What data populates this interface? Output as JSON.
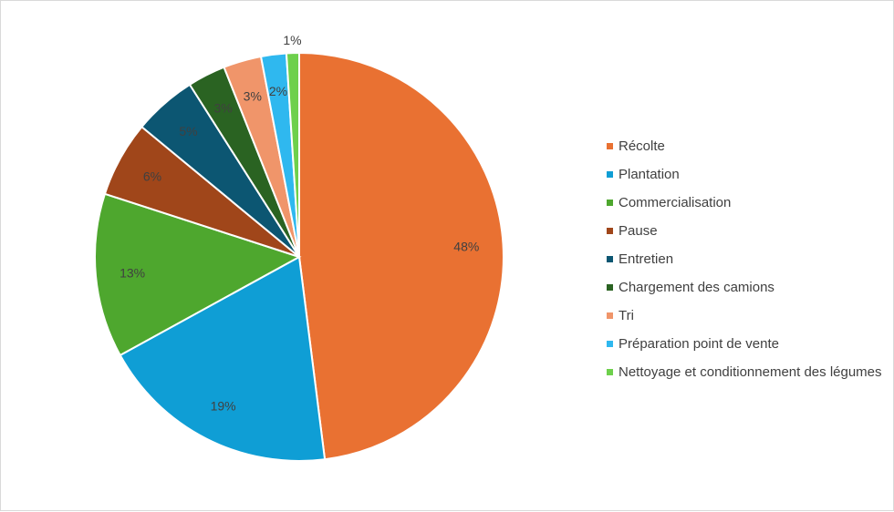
{
  "chart_data": {
    "type": "pie",
    "title": "",
    "categories": [
      "Récolte",
      "Plantation",
      "Commercialisation",
      "Pause",
      "Entretien",
      "Chargement des camions",
      "Tri",
      "Préparation point de vente",
      "Nettoyage et conditionnement des légumes"
    ],
    "values": [
      48,
      19,
      13,
      6,
      5,
      3,
      3,
      2,
      1
    ],
    "data_labels": [
      "48%",
      "19%",
      "13%",
      "6%",
      "5%",
      "3%",
      "3%",
      "2%",
      "1%"
    ],
    "colors": [
      "#e97132",
      "#0f9ed5",
      "#4ea72e",
      "#a0461a",
      "#0c5672",
      "#2a6322",
      "#f0956a",
      "#2fb8ef",
      "#6ed04c"
    ],
    "legend_position": "right"
  }
}
